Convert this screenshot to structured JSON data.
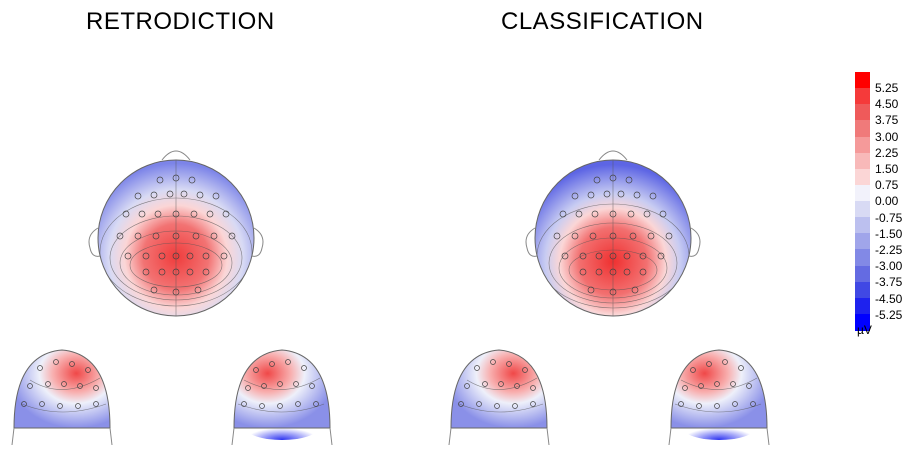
{
  "titles": {
    "left": "RETRODICTION",
    "right": "CLASSIFICATION"
  },
  "colorbar": {
    "unit": "µV",
    "labels": [
      "5.25",
      "4.50",
      "3.75",
      "3.00",
      "2.25",
      "1.50",
      "0.75",
      "0.00",
      "-0.75",
      "-1.50",
      "-2.25",
      "-3.00",
      "-3.75",
      "-4.50",
      "-5.25"
    ],
    "colors": [
      "#ff0000",
      "#f53a3a",
      "#ef5a5a",
      "#f07a7a",
      "#f59a9a",
      "#f8b9b9",
      "#fbd6d6",
      "#f2f2fb",
      "#d8daf4",
      "#bcc0ef",
      "#a0a5ea",
      "#8289e6",
      "#646be2",
      "#4048e4",
      "#1e22ee",
      "#0000ff"
    ],
    "range": [
      -5.25,
      5.25
    ]
  },
  "colors": {
    "positive": "#f24a4a",
    "negative": "#5a62e6",
    "neutral": "#f2f2fb",
    "outline": "#707070"
  }
}
